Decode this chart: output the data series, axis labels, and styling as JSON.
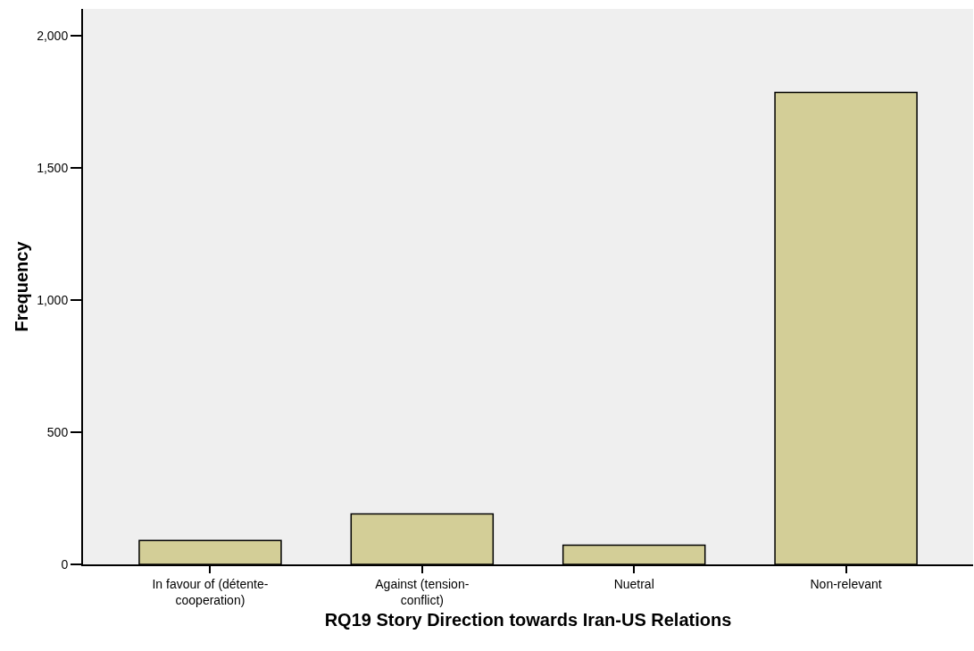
{
  "chart_data": {
    "type": "bar",
    "xlabel": "RQ19 Story Direction towards Iran-US Relations",
    "ylabel": "Frequency",
    "categories": [
      "In favour of (détente-cooperation)",
      "Against (tension-conflict)",
      "Nuetral",
      "Non-relevant"
    ],
    "values": [
      90,
      191,
      73,
      1784
    ],
    "color": "#d3ce97",
    "ylim": [
      0,
      2100
    ],
    "yticks": [
      {
        "value": 0,
        "label": "0"
      },
      {
        "value": 500,
        "label": "500"
      },
      {
        "value": 1000,
        "label": "1,000"
      },
      {
        "value": 1500,
        "label": "1,500"
      },
      {
        "value": 2000,
        "label": "2,000"
      }
    ],
    "grid": false
  }
}
